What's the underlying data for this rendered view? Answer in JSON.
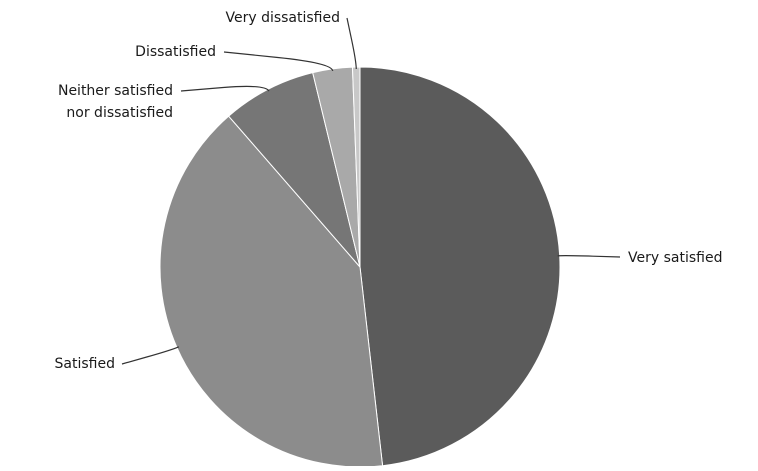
{
  "chart_data": {
    "type": "pie",
    "title": "",
    "slices": [
      {
        "label": "Very satisfied",
        "value": 48.2,
        "color": "#5b5b5b"
      },
      {
        "label": "Satisfied",
        "value": 40.4,
        "color": "#8c8c8c"
      },
      {
        "label": "Neither satisfied nor dissatisfied",
        "value": 7.6,
        "color": "#767676"
      },
      {
        "label": "Dissatisfied",
        "value": 3.2,
        "color": "#a9a9a9"
      },
      {
        "label": "Very dissatisfied",
        "value": 0.6,
        "color": "#c8c8c8"
      }
    ],
    "legend": "none"
  }
}
